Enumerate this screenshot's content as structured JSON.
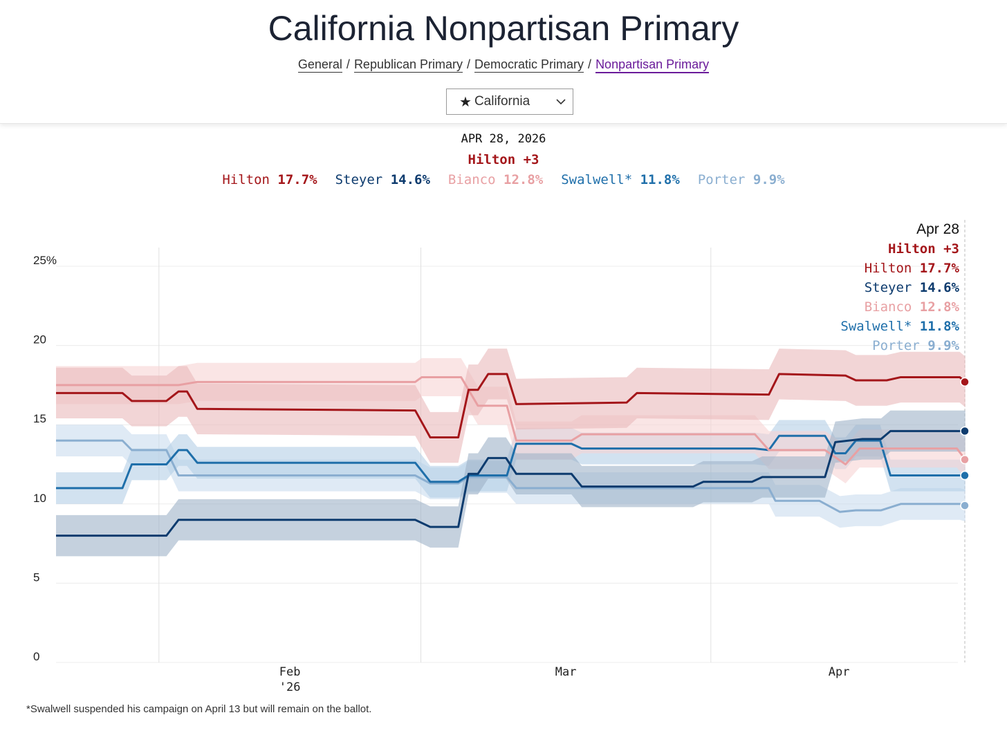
{
  "header": {
    "title": "California Nonpartisan Primary",
    "nav": [
      {
        "label": "General"
      },
      {
        "label": "Republican Primary"
      },
      {
        "label": "Democratic Primary"
      },
      {
        "label": "Nonpartisan Primary",
        "active": true
      }
    ],
    "nav_sep": "/",
    "state_select": {
      "value": "California",
      "icon": "star-icon"
    }
  },
  "summary": {
    "date": "APR 28, 2026",
    "leader": "Hilton +3",
    "candidates": [
      {
        "name": "Hilton",
        "value": "17.7%",
        "color": "#a4161a"
      },
      {
        "name": "Steyer",
        "value": "14.6%",
        "color": "#0d3b6e"
      },
      {
        "name": "Bianco",
        "value": "12.8%",
        "color": "#e8a0a3"
      },
      {
        "name": "Swalwell*",
        "value": "11.8%",
        "color": "#1f6faa"
      },
      {
        "name": "Porter",
        "value": "9.9%",
        "color": "#8aaed0"
      }
    ]
  },
  "chart_data": {
    "type": "line",
    "title": "California Nonpartisan Primary",
    "x_unit": "days since Jan 21, 2026",
    "xlim": [
      0,
      97
    ],
    "ylim": [
      0,
      25
    ],
    "yticks": [
      {
        "v": 0,
        "label": "0"
      },
      {
        "v": 5,
        "label": "5"
      },
      {
        "v": 10,
        "label": "10"
      },
      {
        "v": 15,
        "label": "15"
      },
      {
        "v": 20,
        "label": "20"
      },
      {
        "v": 25,
        "label": "25%"
      }
    ],
    "xticks": [
      {
        "label": "Feb",
        "sub": "'26",
        "grid_day": 11,
        "label_day": 25
      },
      {
        "label": "Mar",
        "grid_day": 39,
        "label_day": 54.5
      },
      {
        "label": "Apr",
        "grid_day": 70,
        "label_day": 83.7
      }
    ],
    "end_label": {
      "date": "Apr 28",
      "leader": "Hilton +3"
    },
    "series": [
      {
        "name": "Porter",
        "value": "9.9%",
        "color": "#8aaed0",
        "band": "#c9dcee",
        "halfwidth": 1.0,
        "points": [
          [
            0,
            14.0
          ],
          [
            7.1,
            14.0
          ],
          [
            8.1,
            13.4
          ],
          [
            11.8,
            13.4
          ],
          [
            13.1,
            11.8
          ],
          [
            38.4,
            11.8
          ],
          [
            40,
            11.3
          ],
          [
            43,
            11.3
          ],
          [
            44.1,
            11.7
          ],
          [
            48.2,
            11.7
          ],
          [
            49.2,
            11.0
          ],
          [
            76.2,
            11.0
          ],
          [
            76.9,
            10.2
          ],
          [
            81.6,
            10.2
          ],
          [
            83.8,
            9.5
          ],
          [
            85.5,
            9.6
          ],
          [
            88.2,
            9.6
          ],
          [
            90.3,
            10.0
          ],
          [
            96.6,
            10.0
          ],
          [
            97.2,
            9.9
          ]
        ]
      },
      {
        "name": "Swalwell*",
        "value": "11.8%",
        "color": "#1f6faa",
        "band": "#b4cfe6",
        "halfwidth": 1.0,
        "points": [
          [
            0,
            11.0
          ],
          [
            7.1,
            11.0
          ],
          [
            8.1,
            12.5
          ],
          [
            11.8,
            12.5
          ],
          [
            13.1,
            13.4
          ],
          [
            14,
            13.4
          ],
          [
            15.1,
            12.6
          ],
          [
            38.4,
            12.6
          ],
          [
            40,
            11.4
          ],
          [
            43,
            11.4
          ],
          [
            44.1,
            11.8
          ],
          [
            48.2,
            11.8
          ],
          [
            49.2,
            13.8
          ],
          [
            55.1,
            13.8
          ],
          [
            56.2,
            13.5
          ],
          [
            74.7,
            13.5
          ],
          [
            76.2,
            13.4
          ],
          [
            77.3,
            14.3
          ],
          [
            82.2,
            14.3
          ],
          [
            83.3,
            13.2
          ],
          [
            84.4,
            13.2
          ],
          [
            85.5,
            14.0
          ],
          [
            88.1,
            14.0
          ],
          [
            89.2,
            11.8
          ],
          [
            97.2,
            11.8
          ]
        ]
      },
      {
        "name": "Bianco",
        "value": "12.8%",
        "color": "#e8a0a3",
        "band": "#f6d3d4",
        "halfwidth": 1.2,
        "points": [
          [
            0,
            17.5
          ],
          [
            13.1,
            17.5
          ],
          [
            15.1,
            17.7
          ],
          [
            38.4,
            17.7
          ],
          [
            39.1,
            18.0
          ],
          [
            43.3,
            18.0
          ],
          [
            45.1,
            16.2
          ],
          [
            48.2,
            16.2
          ],
          [
            49.2,
            14.0
          ],
          [
            55.1,
            14.0
          ],
          [
            56.2,
            14.4
          ],
          [
            74.7,
            14.4
          ],
          [
            76.2,
            13.4
          ],
          [
            82.2,
            13.4
          ],
          [
            84.4,
            12.5
          ],
          [
            85.9,
            13.5
          ],
          [
            96.3,
            13.5
          ],
          [
            97.2,
            12.8
          ]
        ]
      },
      {
        "name": "Steyer",
        "value": "14.6%",
        "color": "#0d3b6e",
        "band": "#9fb2c8",
        "halfwidth": 1.3,
        "points": [
          [
            0,
            8.0
          ],
          [
            11.8,
            8.0
          ],
          [
            13.1,
            9.0
          ],
          [
            38.4,
            9.0
          ],
          [
            40,
            8.55
          ],
          [
            43,
            8.55
          ],
          [
            44.1,
            11.9
          ],
          [
            45.1,
            11.9
          ],
          [
            46.2,
            12.9
          ],
          [
            48.1,
            12.9
          ],
          [
            49.2,
            11.9
          ],
          [
            55.1,
            11.9
          ],
          [
            56.2,
            11.1
          ],
          [
            68.1,
            11.1
          ],
          [
            69.2,
            11.4
          ],
          [
            74.4,
            11.4
          ],
          [
            75.5,
            11.7
          ],
          [
            82.2,
            11.7
          ],
          [
            83.3,
            13.9
          ],
          [
            86.2,
            14.1
          ],
          [
            88.2,
            14.1
          ],
          [
            89.2,
            14.6
          ],
          [
            97.2,
            14.6
          ]
        ]
      },
      {
        "name": "Hilton",
        "value": "17.7%",
        "color": "#a4161a",
        "band": "#e9b9ba",
        "halfwidth": 1.6,
        "points": [
          [
            0,
            17.0
          ],
          [
            7.1,
            17.0
          ],
          [
            8.1,
            16.5
          ],
          [
            11.8,
            16.5
          ],
          [
            13.1,
            17.1
          ],
          [
            14,
            17.1
          ],
          [
            15.1,
            16.0
          ],
          [
            38.4,
            15.9
          ],
          [
            40,
            14.2
          ],
          [
            43,
            14.2
          ],
          [
            44.1,
            17.2
          ],
          [
            45.1,
            17.2
          ],
          [
            46.2,
            18.2
          ],
          [
            48.2,
            18.2
          ],
          [
            49.2,
            16.3
          ],
          [
            61,
            16.4
          ],
          [
            62.1,
            17.0
          ],
          [
            76.2,
            16.9
          ],
          [
            77.3,
            18.2
          ],
          [
            84.4,
            18.1
          ],
          [
            85.5,
            17.8
          ],
          [
            88.8,
            17.8
          ],
          [
            90.3,
            18.0
          ],
          [
            96.6,
            18.0
          ],
          [
            97.2,
            17.7
          ]
        ]
      }
    ]
  },
  "footnote": "*Swalwell suspended his campaign on April 13 but will remain on the ballot."
}
